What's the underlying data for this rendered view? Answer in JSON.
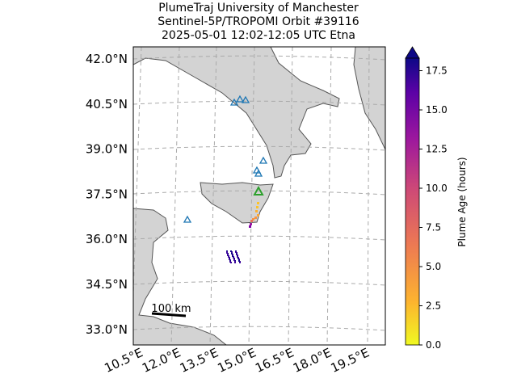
{
  "title_lines": [
    "PlumeTraj    University of Manchester",
    "Sentinel-5P/TROPOMI Orbit #39116",
    "2025-05-01    12:02-12:05 UTC    Etna"
  ],
  "lat_labels": [
    "42.0°N",
    "40.5°N",
    "39.0°N",
    "37.5°N",
    "36.0°N",
    "34.5°N",
    "33.0°N"
  ],
  "lon_labels": [
    "10.5°E",
    "12.0°E",
    "13.5°E",
    "15.0°E",
    "16.5°E",
    "18.0°E",
    "19.5°E"
  ],
  "scale_bar": "100 km",
  "colorbar": {
    "label": "Plume Age (hours)",
    "lim": [
      0,
      18.3
    ],
    "ticks": [
      {
        "value": 0,
        "label": "0.0"
      },
      {
        "value": 2.5,
        "label": "2.5"
      },
      {
        "value": 5,
        "label": "5.0"
      },
      {
        "value": 7.5,
        "label": "7.5"
      },
      {
        "value": 10,
        "label": "10.0"
      },
      {
        "value": 12.5,
        "label": "12.5"
      },
      {
        "value": 15,
        "label": "15.0"
      },
      {
        "value": 17.5,
        "label": "17.5"
      }
    ]
  }
}
